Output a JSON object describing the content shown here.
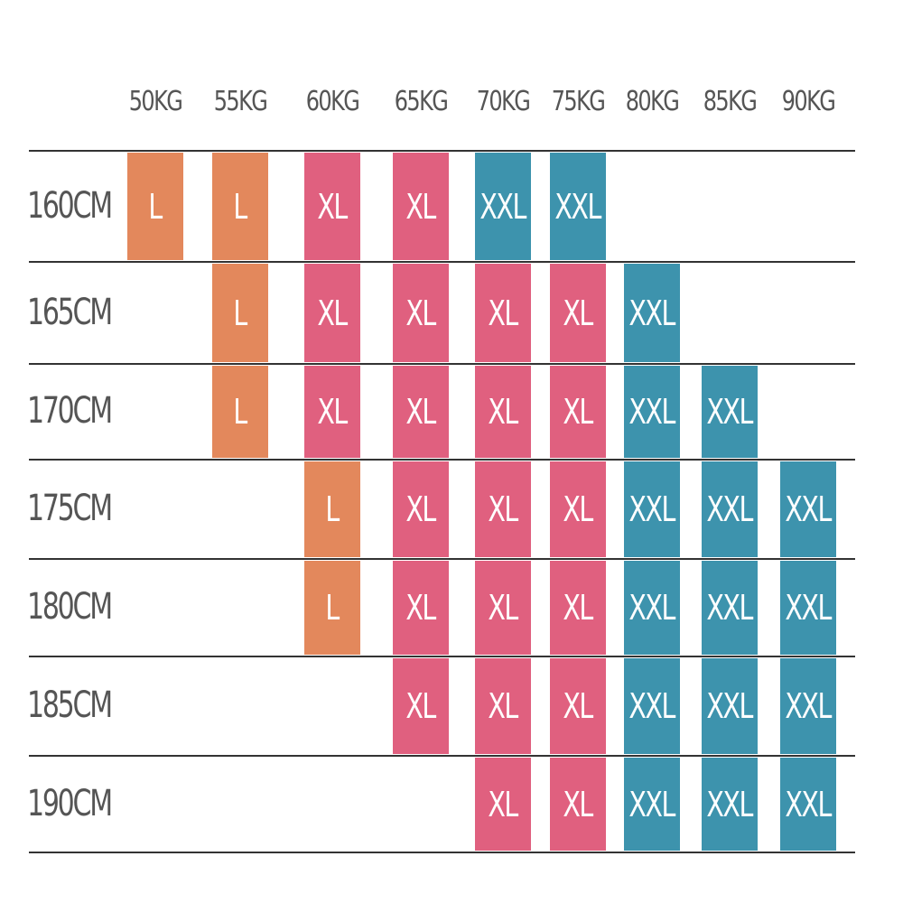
{
  "table": {
    "columns": [
      "50KG",
      "55KG",
      "60KG",
      "65KG",
      "70KG",
      "75KG",
      "80KG",
      "85KG",
      "90KG"
    ],
    "colors": {
      "L": "#e3885c",
      "XL": "#e0607f",
      "XXL": "#3d93ad"
    },
    "rows": [
      {
        "label": "160CM",
        "cells": [
          "L",
          "L",
          "XL",
          "XL",
          "XXL",
          "XXL",
          null,
          null,
          null
        ]
      },
      {
        "label": "165CM",
        "cells": [
          null,
          "L",
          "XL",
          "XL",
          "XL",
          "XL",
          "XXL",
          null,
          null
        ]
      },
      {
        "label": "170CM",
        "cells": [
          null,
          "L",
          "XL",
          "XL",
          "XL",
          "XL",
          "XXL",
          "XXL",
          null
        ]
      },
      {
        "label": "175CM",
        "cells": [
          null,
          null,
          "L",
          "XL",
          "XL",
          "XL",
          "XXL",
          "XXL",
          "XXL"
        ]
      },
      {
        "label": "180CM",
        "cells": [
          null,
          null,
          "L",
          "XL",
          "XL",
          "XL",
          "XXL",
          "XXL",
          "XXL"
        ]
      },
      {
        "label": "185CM",
        "cells": [
          null,
          null,
          null,
          "XL",
          "XL",
          "XL",
          "XXL",
          "XXL",
          "XXL"
        ]
      },
      {
        "label": "190CM",
        "cells": [
          null,
          null,
          null,
          null,
          "XL",
          "XL",
          "XXL",
          "XXL",
          "XXL"
        ]
      }
    ]
  }
}
